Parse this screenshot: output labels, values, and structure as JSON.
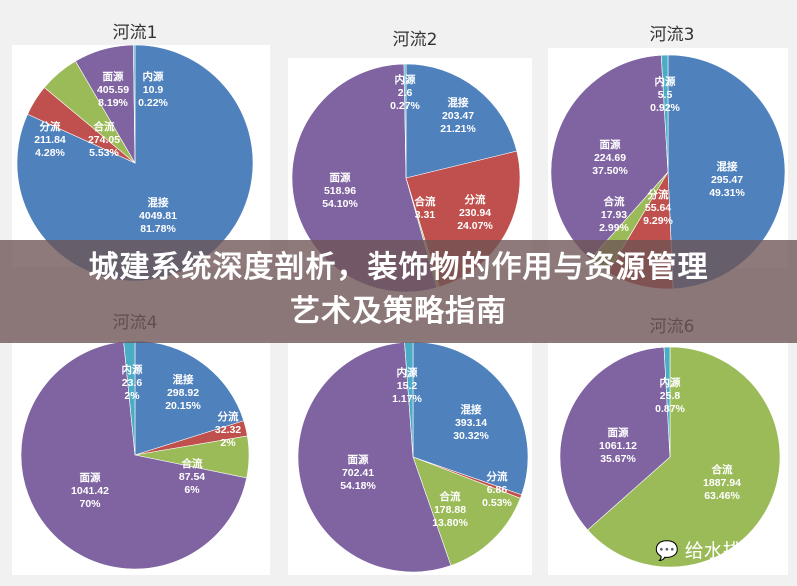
{
  "chart_data": [
    {
      "type": "pie",
      "title": "河流1",
      "slices": [
        {
          "label": "混接",
          "value": 4049.81,
          "pct": "81.78%"
        },
        {
          "label": "分流",
          "value": 211.84,
          "pct": "4.28%"
        },
        {
          "label": "合流",
          "value": 274.05,
          "pct": "5.53%"
        },
        {
          "label": "面源",
          "value": 405.59,
          "pct": "8.19%"
        },
        {
          "label": "内源",
          "value": 10.9,
          "pct": "0.22%"
        }
      ]
    },
    {
      "type": "pie",
      "title": "河流2",
      "slices": [
        {
          "label": "混接",
          "value": 203.47,
          "pct": "21.21%"
        },
        {
          "label": "分流",
          "value": 230.94,
          "pct": "24.07%"
        },
        {
          "label": "合流",
          "value": 3.31,
          "pct": ""
        },
        {
          "label": "面源",
          "value": 518.96,
          "pct": "54.10%"
        },
        {
          "label": "内源",
          "value": 2.6,
          "pct": "0.27%"
        }
      ]
    },
    {
      "type": "pie",
      "title": "河流3",
      "slices": [
        {
          "label": "混接",
          "value": 295.47,
          "pct": "49.31%"
        },
        {
          "label": "分流",
          "value": 55.64,
          "pct": "9.29%"
        },
        {
          "label": "合流",
          "value": 17.93,
          "pct": "2.99%"
        },
        {
          "label": "面源",
          "value": 224.69,
          "pct": "37.50%"
        },
        {
          "label": "内源",
          "value": 5.5,
          "pct": "0.92%"
        }
      ]
    },
    {
      "type": "pie",
      "title": "河流4",
      "slices": [
        {
          "label": "混接",
          "value": 298.92,
          "pct": "20.15%"
        },
        {
          "label": "分流",
          "value": 32.32,
          "pct": "2%"
        },
        {
          "label": "合流",
          "value": 87.54,
          "pct": "6%"
        },
        {
          "label": "面源",
          "value": 1041.42,
          "pct": "70%"
        },
        {
          "label": "内源",
          "value": 23.6,
          "pct": "2%"
        }
      ]
    },
    {
      "type": "pie",
      "title": "",
      "slices": [
        {
          "label": "混接",
          "value": 393.14,
          "pct": "30.32%"
        },
        {
          "label": "分流",
          "value": 6.86,
          "pct": "0.53%"
        },
        {
          "label": "合流",
          "value": 178.88,
          "pct": "13.80%"
        },
        {
          "label": "面源",
          "value": 702.41,
          "pct": "54.18%"
        },
        {
          "label": "内源",
          "value": 15.2,
          "pct": "1.17%"
        }
      ]
    },
    {
      "type": "pie",
      "title": "河流6",
      "slices": [
        {
          "label": "合流",
          "value": 1887.94,
          "pct": "63.46%"
        },
        {
          "label": "面源",
          "value": 1061.12,
          "pct": "35.67%"
        },
        {
          "label": "内源",
          "value": 25.8,
          "pct": "0.87%"
        }
      ]
    }
  ],
  "colors": {
    "混接": "#4f81bd",
    "分流": "#c0504d",
    "合流": "#9bbb59",
    "面源": "#8064a2",
    "内源": "#4bacc6"
  },
  "banner": {
    "line1": "城建系统深度剖析，装饰物的作用与资源管理",
    "line2": "艺术及策略指南"
  },
  "watermark": "给水排水"
}
